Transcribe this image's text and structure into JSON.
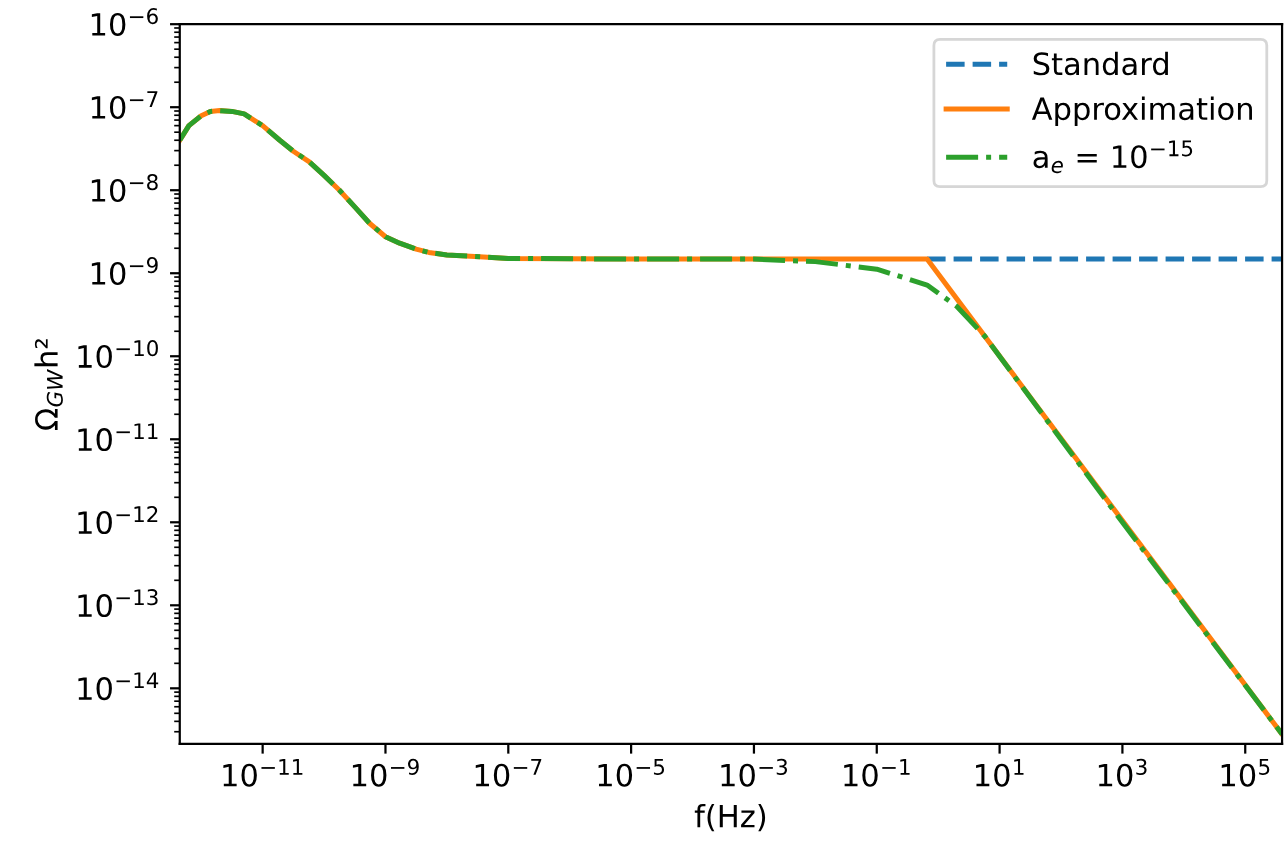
{
  "chart_data": {
    "type": "line",
    "xlabel": "f(Hz)",
    "ylabel": "Ω$_{GW}$h²",
    "log": "xy",
    "xlim": [
      4.47e-13,
      398000.0
    ],
    "ylim": [
      2.14e-15,
      1e-06
    ],
    "xticks": [
      {
        "value": 1e-11,
        "label": "10$^{−11}$"
      },
      {
        "value": 1e-09,
        "label": "10$^{−9}$"
      },
      {
        "value": 1e-07,
        "label": "10$^{−7}$"
      },
      {
        "value": 1e-05,
        "label": "10$^{−5}$"
      },
      {
        "value": 0.001,
        "label": "10$^{−3}$"
      },
      {
        "value": 0.1,
        "label": "10$^{−1}$"
      },
      {
        "value": 10,
        "label": "10$^{1}$"
      },
      {
        "value": 1000,
        "label": "10$^{3}$"
      },
      {
        "value": 100000,
        "label": "10$^{5}$"
      }
    ],
    "yticks": [
      {
        "value": 1e-06,
        "label": "10$^{−6}$"
      },
      {
        "value": 1e-07,
        "label": "10$^{−7}$"
      },
      {
        "value": 1e-08,
        "label": "10$^{−8}$"
      },
      {
        "value": 1e-09,
        "label": "10$^{−9}$"
      },
      {
        "value": 1e-10,
        "label": "10$^{−10}$"
      },
      {
        "value": 1e-11,
        "label": "10$^{−11}$"
      },
      {
        "value": 1e-12,
        "label": "10$^{−12}$"
      },
      {
        "value": 1e-13,
        "label": "10$^{−13}$"
      },
      {
        "value": 1e-14,
        "label": "10$^{−14}$"
      }
    ],
    "grid": false,
    "legend": "top right",
    "marker": "none",
    "series": [
      {
        "name": "Standard",
        "color": "#1f77b4",
        "line_style": "dashed",
        "x": [
          0.66,
          10,
          1000,
          398000.0
        ],
        "values": [
          1.48e-09,
          1.48e-09,
          1.48e-09,
          1.48e-09
        ]
      },
      {
        "name": "Approximation",
        "color": "#ff7f0e",
        "line_style": "solid",
        "x": [
          4.47e-13,
          6.3e-13,
          1e-12,
          1.41e-12,
          2e-12,
          3.16e-12,
          5e-12,
          1e-11,
          1.9e-11,
          3.16e-11,
          5.75e-11,
          1e-10,
          1.78e-10,
          3.16e-10,
          5.5e-10,
          1e-09,
          1.7e-09,
          3.16e-09,
          5.1e-09,
          1e-08,
          3.4e-08,
          1e-07,
          1e-05,
          0.001,
          0.1,
          0.66,
          398000.0
        ],
        "values": [
          4e-08,
          6e-08,
          7.9e-08,
          8.9e-08,
          9.1e-08,
          8.9e-08,
          8.3e-08,
          6e-08,
          4e-08,
          2.95e-08,
          2.2e-08,
          1.51e-08,
          1e-08,
          6.3e-09,
          4e-09,
          2.75e-09,
          2.3e-09,
          1.95e-09,
          1.78e-09,
          1.66e-09,
          1.58e-09,
          1.51e-09,
          1.48e-09,
          1.48e-09,
          1.48e-09,
          1.48e-09,
          2.8e-15
        ]
      },
      {
        "name": "a$_{e}$ = 10$^{−15}$",
        "color": "#2ca02c",
        "line_style": "dashdot",
        "x": [
          4.47e-13,
          6.3e-13,
          1e-12,
          1.41e-12,
          2e-12,
          3.16e-12,
          5e-12,
          1e-11,
          1.9e-11,
          3.16e-11,
          5.75e-11,
          1e-10,
          1.78e-10,
          3.16e-10,
          5.5e-10,
          1e-09,
          1.7e-09,
          3.16e-09,
          5.1e-09,
          1e-08,
          3.4e-08,
          1e-07,
          1e-05,
          0.001,
          0.01,
          0.1,
          0.66,
          2.0,
          5.75,
          1000,
          398000.0
        ],
        "values": [
          4e-08,
          6e-08,
          7.9e-08,
          8.9e-08,
          9.1e-08,
          8.9e-08,
          8.3e-08,
          6e-08,
          4e-08,
          2.95e-08,
          2.2e-08,
          1.51e-08,
          1e-08,
          6.3e-09,
          4e-09,
          2.75e-09,
          2.3e-09,
          1.95e-09,
          1.78e-09,
          1.66e-09,
          1.58e-09,
          1.51e-09,
          1.48e-09,
          1.48e-09,
          1.38e-09,
          1.12e-09,
          7.2e-10,
          4e-10,
          1.74e-10,
          1e-12,
          2.8e-15
        ]
      }
    ]
  }
}
